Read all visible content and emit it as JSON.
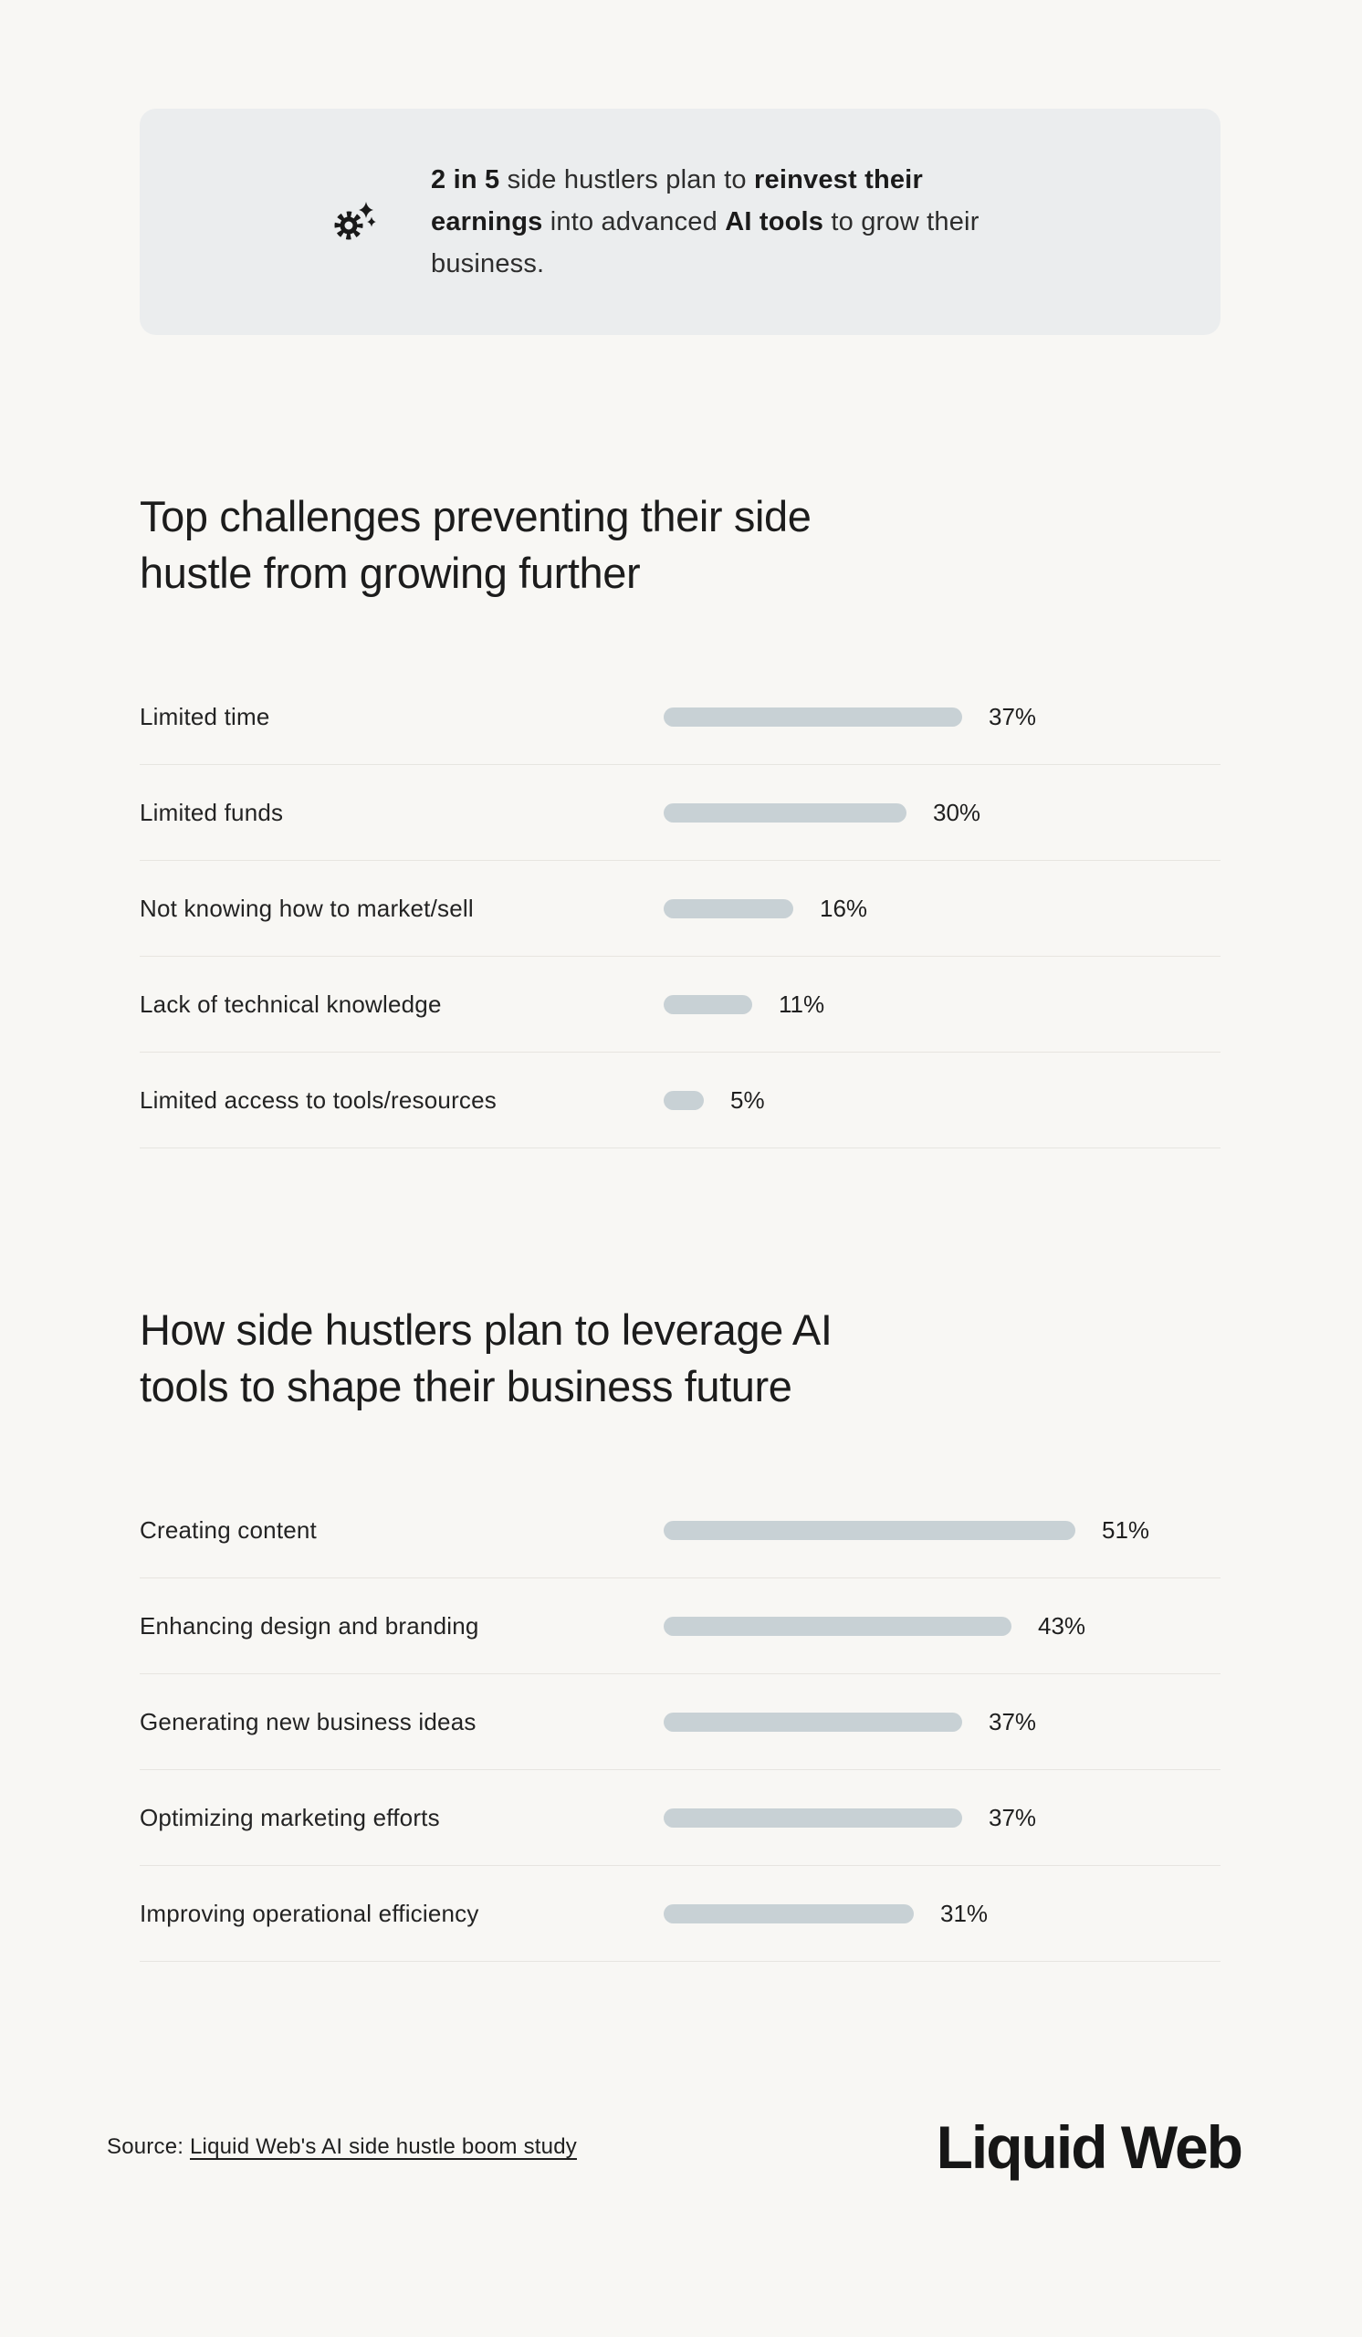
{
  "callout": {
    "icon": "gear-sparkle-icon",
    "segments": [
      {
        "text": "2 in 5",
        "bold": true
      },
      {
        "text": " side hustlers plan to ",
        "bold": false
      },
      {
        "text": "reinvest their",
        "bold": true
      },
      {
        "br": true
      },
      {
        "text": "earnings",
        "bold": true
      },
      {
        "text": " into advanced ",
        "bold": false
      },
      {
        "text": "AI tools",
        "bold": true
      },
      {
        "text": " to grow their",
        "bold": false
      },
      {
        "br": true
      },
      {
        "text": "business.",
        "bold": false
      }
    ]
  },
  "sections": [
    {
      "title": "Top challenges preventing their side\nhustle from growing further"
    },
    {
      "title": "How side hustlers plan to leverage AI\ntools to shape their business future"
    }
  ],
  "chart_data": [
    {
      "type": "bar",
      "orientation": "horizontal",
      "title": "Top challenges preventing their side hustle from growing further",
      "categories": [
        "Limited time",
        "Limited funds",
        "Not knowing how to market/sell",
        "Lack of technical knowledge",
        "Limited access to tools/resources"
      ],
      "values": [
        37,
        30,
        16,
        11,
        5
      ],
      "unit": "%",
      "data_labels": [
        "37%",
        "30%",
        "16%",
        "11%",
        "5%"
      ],
      "xlim": [
        0,
        60
      ],
      "grid": false,
      "legend": "none",
      "bar_color": "#c8d1d5",
      "value_label_position": "right-of-bar"
    },
    {
      "type": "bar",
      "orientation": "horizontal",
      "title": "How side hustlers plan to leverage AI tools to shape their business future",
      "categories": [
        "Creating content",
        "Enhancing design and branding",
        "Generating new business ideas",
        "Optimizing marketing efforts",
        "Improving operational efficiency"
      ],
      "values": [
        51,
        43,
        37,
        37,
        31
      ],
      "unit": "%",
      "data_labels": [
        "51%",
        "43%",
        "37%",
        "37%",
        "31%"
      ],
      "xlim": [
        0,
        60
      ],
      "grid": false,
      "legend": "none",
      "bar_color": "#c8d1d5",
      "value_label_position": "right-of-bar"
    }
  ],
  "footer": {
    "source_prefix": "Source: ",
    "source_link": "Liquid Web's AI side hustle boom study",
    "brand": "Liquid Web"
  },
  "colors": {
    "background": "#f8f7f4",
    "callout_background": "#ebedee",
    "bar_fill": "#c8d1d5",
    "divider": "#e7e5e0",
    "text_primary": "#1f1f1f",
    "icon": "#191919"
  }
}
